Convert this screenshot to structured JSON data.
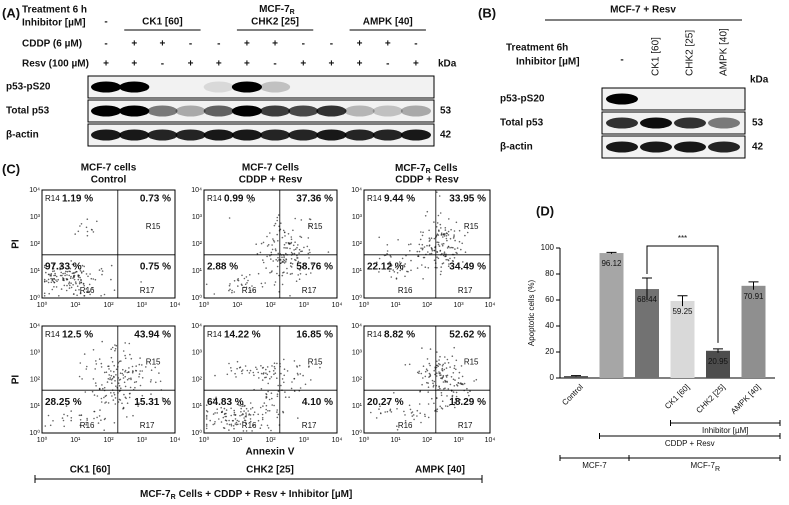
{
  "panel_a": {
    "label": "(A)",
    "treatment": "Treatment 6 h",
    "inhibitor": "Inhibitor [µM]",
    "control_mark": "-",
    "groups": [
      "CK1 [60]",
      "CHK2 [25]",
      "AMPK [40]"
    ],
    "cell_line": {
      "text": "MCF-7",
      "sub": "R"
    },
    "rows": [
      {
        "label": "CDDP (6 µM)",
        "signs": [
          "-",
          "+",
          "+",
          "-",
          "-",
          "+",
          "+",
          "-",
          "-",
          "+",
          "+",
          "-"
        ]
      },
      {
        "label": "Resv (100 µM)",
        "signs": [
          "+",
          "+",
          "-",
          "+",
          "+",
          "+",
          "-",
          "+",
          "+",
          "+",
          "-",
          "+"
        ]
      }
    ],
    "kda_header": "kDa",
    "blots": [
      {
        "label": "p53-pS20"
      },
      {
        "label": "Total p53",
        "kda": "53"
      },
      {
        "label": "β-actin",
        "kda": "42"
      }
    ]
  },
  "panel_b": {
    "label": "(B)",
    "header": "MCF-7 + Resv",
    "treatment": "Treatment 6h",
    "inhibitor": "Inhibitor [µM]",
    "lanes": [
      "-",
      "CK1 [60]",
      "CHK2 [25]",
      "AMPK [40]"
    ],
    "kda_header": "kDa",
    "blots": [
      {
        "label": "p53-pS20"
      },
      {
        "label": "Total p53",
        "kda": "53"
      },
      {
        "label": "β-actin",
        "kda": "42"
      }
    ]
  },
  "panel_c": {
    "label": "(C)",
    "y_label": "PI",
    "x_label": "Annexin V",
    "axis_ticks": [
      "10⁰",
      "10¹",
      "10²",
      "10³",
      "10⁴"
    ],
    "regions": [
      "R14",
      "R15",
      "R16",
      "R17"
    ],
    "plots": [
      {
        "title": {
          "line1": "MCF-7 cells",
          "line2": "Control"
        },
        "quadrants": [
          "1.19 %",
          "0.73 %",
          "97.33 %",
          "0.75 %"
        ]
      },
      {
        "title": {
          "line1": "MCF-7 Cells",
          "line2": "CDDP + Resv"
        },
        "quadrants": [
          "0.99 %",
          "37.36 %",
          "2.88 %",
          "58.76 %"
        ]
      },
      {
        "title": {
          "line1": {
            "text": "MCF-7",
            "sub": "R",
            "rest": "Cells"
          },
          "line2": "CDDP + Resv"
        },
        "quadrants": [
          "9.44 %",
          "33.95 %",
          "22.12 %",
          "34.49 %"
        ]
      },
      {
        "quadrants": [
          "12.5 %",
          "43.94 %",
          "28.25 %",
          "15.31 %"
        ]
      },
      {
        "quadrants": [
          "14.22 %",
          "16.85 %",
          "64.83 %",
          "4.10 %"
        ]
      },
      {
        "quadrants": [
          "8.82 %",
          "52.62 %",
          "20.27 %",
          "18.29 %"
        ]
      }
    ],
    "groups": [
      "CK1 [60]",
      "CHK2 [25]",
      "AMPK [40]"
    ],
    "footer": {
      "text": "MCF-7",
      "sub": "R",
      "rest": "Cells + CDDP + Resv + Inhibitor [µM]"
    }
  },
  "chart_data": {
    "type": "bar",
    "panel_label": "(D)",
    "y_label": "Apoptotic cells (%)",
    "categories": [
      "Control",
      null,
      null,
      "CK1 [60]",
      "CHK2 [25]",
      "AMPK [40]"
    ],
    "values": [
      1.5,
      96.12,
      68.44,
      59.25,
      20.95,
      70.91
    ],
    "value_labels": [
      null,
      "96.12",
      "68.44",
      "59.25",
      "20.95",
      "70.91"
    ],
    "errors": [
      0.3,
      0.5,
      8.5,
      4,
      1.5,
      3
    ],
    "colors": [
      "#555555",
      "#a6a6a6",
      "#727272",
      "#d9d9d9",
      "#4d4d4d",
      "#8f8f8f"
    ],
    "ylim": [
      0,
      100
    ],
    "yticks": [
      0,
      20,
      40,
      60,
      80,
      100
    ],
    "annotation": "***",
    "groups": [
      {
        "label": "Inhibitor [µM]"
      },
      {
        "label": "CDDP + Resv"
      },
      {
        "label": "MCF-7"
      },
      {
        "label": {
          "text": "MCF-7",
          "sub": "R"
        }
      }
    ]
  }
}
